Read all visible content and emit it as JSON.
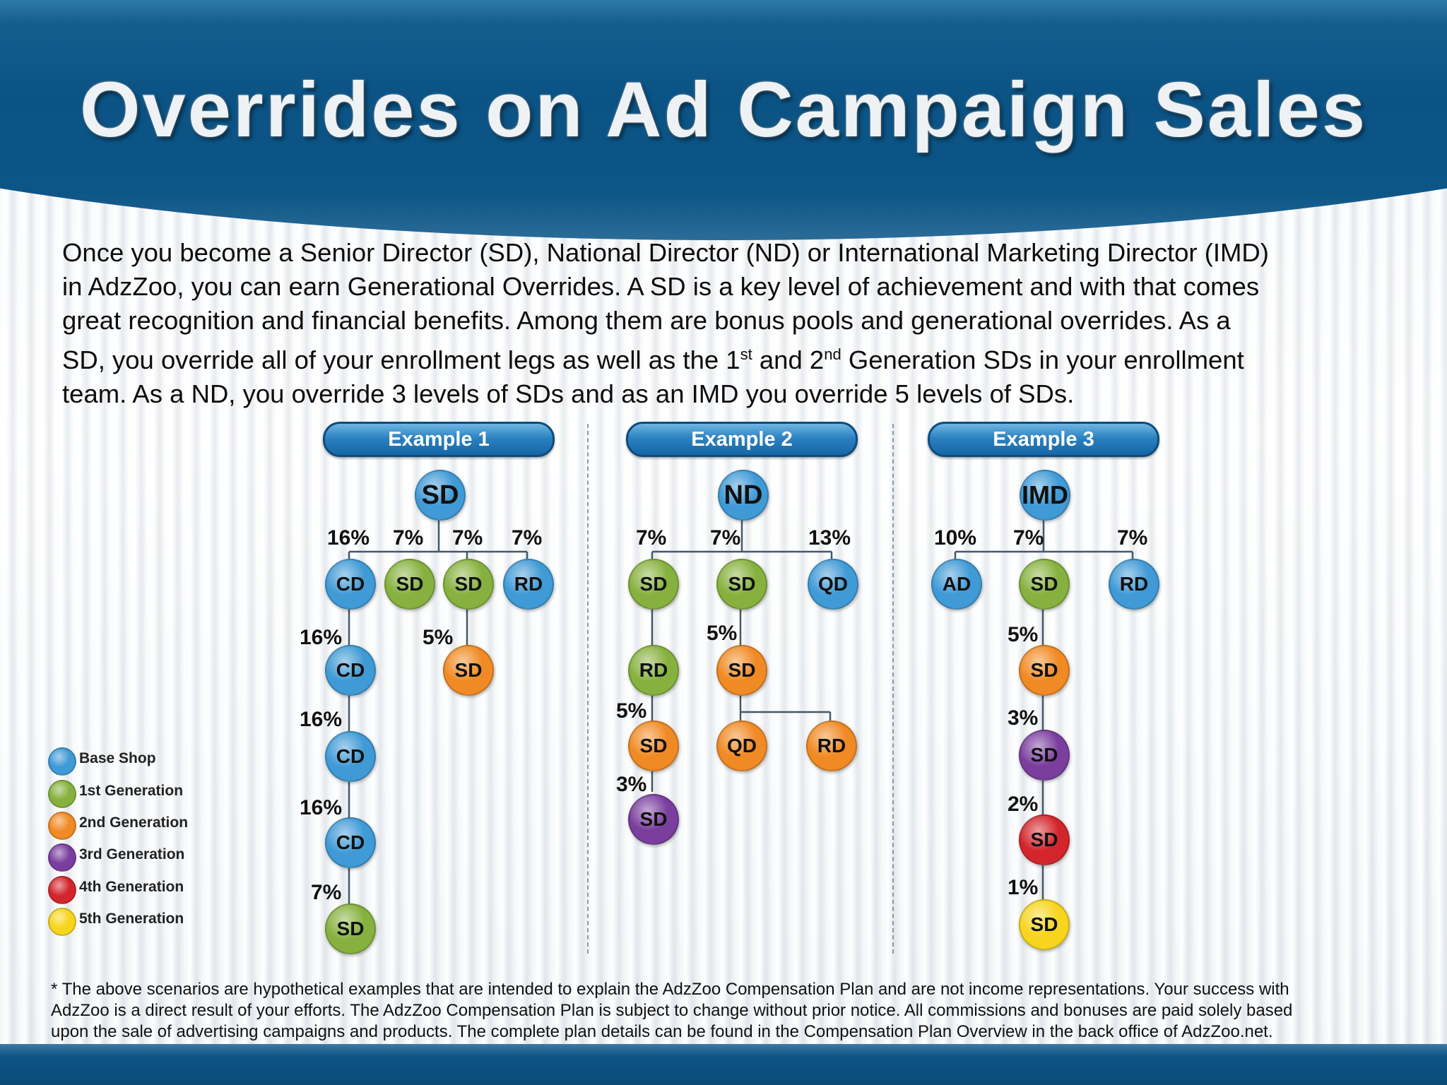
{
  "title": "Overrides on Ad Campaign Sales",
  "intro": {
    "line1": "Once you become a Senior Director (SD), National Director (ND) or International Marketing Director (IMD)",
    "line2": "in AdzZoo,  you can earn Generational Overrides.  A SD is a key level of achievement and with that comes",
    "line3": "great recognition and financial benefits.  Among them are bonus pools and generational overrides.  As  a",
    "line4a": "SD, you override all of your enrollment legs as well as the 1",
    "sup1": "st",
    "line4b": " and 2",
    "sup2": "nd",
    "line4c": " Generation SDs in your enrollment",
    "line5": "team.  As a ND, you override 3 levels of SDs and as an IMD you override 5 levels of SDs."
  },
  "colors": {
    "base": "#3f9ad6",
    "gen1": "#86b13e",
    "gen2": "#f08a24",
    "gen3": "#7a3f9e",
    "gen4": "#d3262c",
    "gen5": "#f7d51e"
  },
  "legend": [
    {
      "label": "Base Shop",
      "color": "base"
    },
    {
      "label": "1st Generation",
      "color": "gen1"
    },
    {
      "label": "2nd Generation",
      "color": "gen2"
    },
    {
      "label": "3rd Generation",
      "color": "gen3"
    },
    {
      "label": "4th Generation",
      "color": "gen4"
    },
    {
      "label": "5th Generation",
      "color": "gen5"
    }
  ],
  "examples": [
    {
      "title": "Example 1",
      "root": "SD",
      "nodes": [
        {
          "id": "e1_cd1",
          "label": "CD",
          "color": "base"
        },
        {
          "id": "e1_sd1",
          "label": "SD",
          "color": "gen1"
        },
        {
          "id": "e1_sd2",
          "label": "SD",
          "color": "gen1"
        },
        {
          "id": "e1_rd",
          "label": "RD",
          "color": "base"
        },
        {
          "id": "e1_cd2",
          "label": "CD",
          "color": "base"
        },
        {
          "id": "e1_sd3",
          "label": "SD",
          "color": "gen2"
        },
        {
          "id": "e1_cd3",
          "label": "CD",
          "color": "base"
        },
        {
          "id": "e1_cd4",
          "label": "CD",
          "color": "base"
        },
        {
          "id": "e1_sd4",
          "label": "SD",
          "color": "gen1"
        }
      ],
      "percents": [
        "16%",
        "7%",
        "7%",
        "7%",
        "16%",
        "5%",
        "16%",
        "16%",
        "7%"
      ]
    },
    {
      "title": "Example 2",
      "root": "ND",
      "nodes": [
        {
          "id": "e2_sd1",
          "label": "SD",
          "color": "gen1"
        },
        {
          "id": "e2_sd2",
          "label": "SD",
          "color": "gen1"
        },
        {
          "id": "e2_qd1",
          "label": "QD",
          "color": "base"
        },
        {
          "id": "e2_rd1",
          "label": "RD",
          "color": "gen1"
        },
        {
          "id": "e2_sd3",
          "label": "SD",
          "color": "gen2"
        },
        {
          "id": "e2_sd4",
          "label": "SD",
          "color": "gen2"
        },
        {
          "id": "e2_qd2",
          "label": "QD",
          "color": "gen2"
        },
        {
          "id": "e2_rd2",
          "label": "RD",
          "color": "gen2"
        },
        {
          "id": "e2_sd5",
          "label": "SD",
          "color": "gen3"
        }
      ],
      "percents": [
        "7%",
        "7%",
        "13%",
        "5%",
        "5%",
        "3%"
      ]
    },
    {
      "title": "Example 3",
      "root": "IMD",
      "nodes": [
        {
          "id": "e3_ad",
          "label": "AD",
          "color": "base"
        },
        {
          "id": "e3_sd1",
          "label": "SD",
          "color": "gen1"
        },
        {
          "id": "e3_rd",
          "label": "RD",
          "color": "base"
        },
        {
          "id": "e3_sd2",
          "label": "SD",
          "color": "gen2"
        },
        {
          "id": "e3_sd3",
          "label": "SD",
          "color": "gen3"
        },
        {
          "id": "e3_sd4",
          "label": "SD",
          "color": "gen4"
        },
        {
          "id": "e3_sd5",
          "label": "SD",
          "color": "gen5"
        }
      ],
      "percents": [
        "10%",
        "7%",
        "7%",
        "5%",
        "3%",
        "2%",
        "1%"
      ]
    }
  ],
  "disclaimer": {
    "line1": "*  The above scenarios are hypothetical examples that are intended to explain the AdzZoo Compensation Plan and are not income representations. Your success with",
    "line2": "AdzZoo is a direct result of your efforts. The AdzZoo Compensation Plan is subject to change without prior notice. All commissions and bonuses are paid solely based",
    "line3": "upon the sale of advertising campaigns and products. The complete plan details can be found in the Compensation Plan Overview in the back office of AdzZoo.net."
  }
}
